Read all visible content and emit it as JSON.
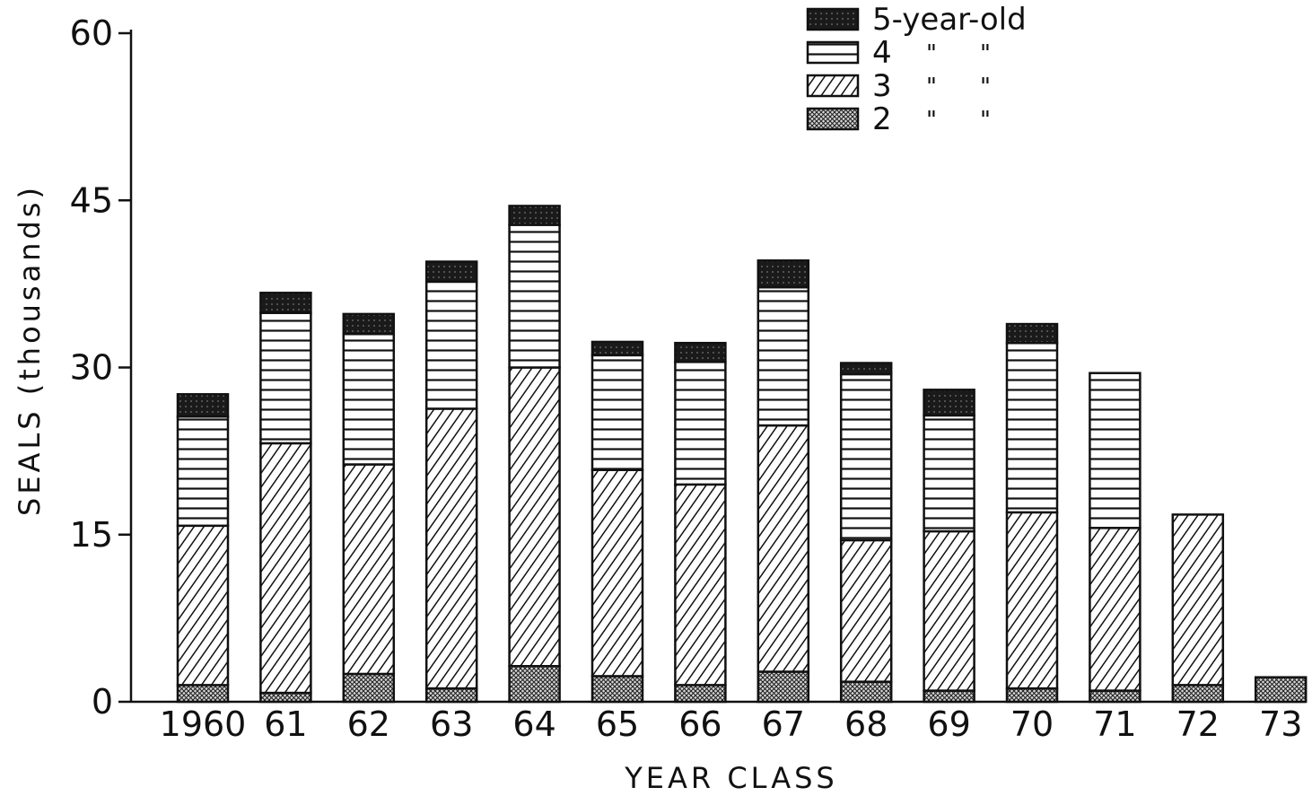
{
  "chart_data": {
    "type": "bar",
    "stacked": true,
    "xlabel": "YEAR CLASS",
    "ylabel": "SEALS (thousands)",
    "ylim": [
      0,
      60
    ],
    "yticks": [
      0,
      15,
      30,
      45,
      60
    ],
    "categories": [
      "1960",
      "61",
      "62",
      "63",
      "64",
      "65",
      "66",
      "67",
      "68",
      "69",
      "70",
      "71",
      "72",
      "73"
    ],
    "series": [
      {
        "name": "2",
        "pattern": "crosshatch",
        "values": [
          1.5,
          0.8,
          2.5,
          1.2,
          3.2,
          2.3,
          1.5,
          2.7,
          1.8,
          1.0,
          1.2,
          1.0,
          1.5,
          2.2
        ]
      },
      {
        "name": "3",
        "pattern": "diagonal",
        "values": [
          14.3,
          22.4,
          18.8,
          25.1,
          26.8,
          18.5,
          18.0,
          22.1,
          12.7,
          14.3,
          15.8,
          14.6,
          15.3,
          0
        ]
      },
      {
        "name": "4",
        "pattern": "horizontal",
        "values": [
          9.8,
          11.7,
          11.7,
          11.4,
          12.8,
          10.3,
          11.0,
          12.4,
          14.9,
          10.4,
          15.2,
          13.9,
          0,
          0
        ]
      },
      {
        "name": "5-year-old",
        "pattern": "solid",
        "values": [
          2.0,
          1.8,
          1.8,
          1.8,
          1.7,
          1.2,
          1.7,
          2.4,
          1.0,
          2.3,
          1.7,
          0,
          0,
          0
        ]
      }
    ],
    "legend": {
      "position": "top-right",
      "entries": [
        "5-year-old",
        "4",
        "3",
        "2"
      ],
      "ditto_mark": "\""
    },
    "grid": false
  }
}
